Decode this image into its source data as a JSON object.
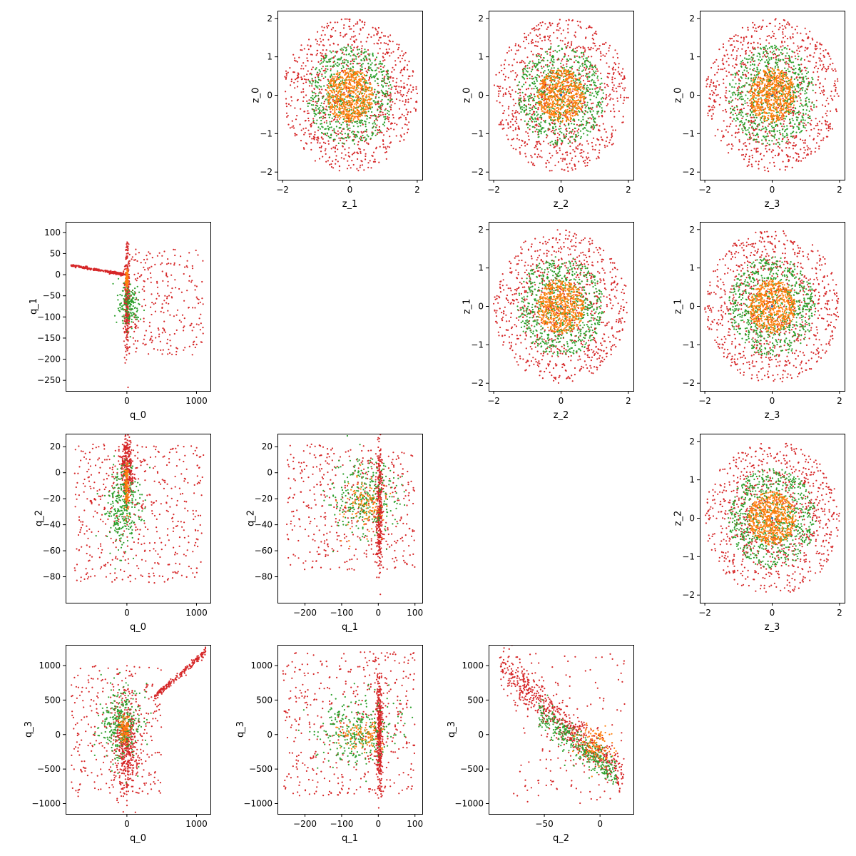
{
  "figure": {
    "description_free": true
  },
  "colors": {
    "blue": "#1f77b4",
    "orange": "#ff7f0e",
    "green": "#2ca02c",
    "red": "#d62728"
  },
  "chart_data": [
    {
      "type": "scatter",
      "id": "z0_vs_z1",
      "xlabel": "z_1",
      "ylabel": "z_0",
      "xlim": [
        -2.15,
        2.15
      ],
      "ylim": [
        -2.2,
        2.2
      ],
      "xticks": [
        -2,
        0,
        2
      ],
      "yticks": [
        -2,
        -1,
        0,
        1,
        2
      ],
      "ytick_labels": [
        "−2",
        "−1",
        "0",
        "1",
        "2"
      ],
      "xtick_labels": [
        "−2",
        "0",
        "2"
      ],
      "series": [
        {
          "color": "red",
          "distribution": "uniform_disk",
          "x_center": 0,
          "y_center": 0,
          "radius": 2.0,
          "count": 900
        },
        {
          "color": "green",
          "distribution": "uniform_disk",
          "x_center": 0,
          "y_center": 0,
          "radius": 1.3,
          "count": 700
        },
        {
          "color": "orange",
          "distribution": "uniform_disk",
          "x_center": 0,
          "y_center": 0,
          "radius": 0.7,
          "count": 600
        },
        {
          "color": "blue",
          "distribution": "point",
          "x_center": 0,
          "y_center": 0,
          "radius": 0.02,
          "count": 5
        }
      ]
    },
    {
      "type": "scatter",
      "id": "z0_vs_z2",
      "xlabel": "z_2",
      "ylabel": "z_0",
      "xlim": [
        -2.15,
        2.15
      ],
      "ylim": [
        -2.2,
        2.2
      ],
      "xticks": [
        -2,
        0,
        2
      ],
      "yticks": [
        -2,
        -1,
        0,
        1,
        2
      ],
      "ytick_labels": [
        "−2",
        "−1",
        "0",
        "1",
        "2"
      ],
      "xtick_labels": [
        "−2",
        "0",
        "2"
      ],
      "series": [
        {
          "color": "red",
          "distribution": "uniform_disk",
          "x_center": 0,
          "y_center": 0,
          "radius": 2.0,
          "count": 900
        },
        {
          "color": "green",
          "distribution": "uniform_disk",
          "x_center": 0,
          "y_center": 0,
          "radius": 1.3,
          "count": 700
        },
        {
          "color": "orange",
          "distribution": "uniform_disk",
          "x_center": 0,
          "y_center": 0,
          "radius": 0.7,
          "count": 600
        },
        {
          "color": "blue",
          "distribution": "point",
          "x_center": 0,
          "y_center": 0,
          "radius": 0.02,
          "count": 5
        }
      ]
    },
    {
      "type": "scatter",
      "id": "z0_vs_z3",
      "xlabel": "z_3",
      "ylabel": "z_0",
      "xlim": [
        -2.15,
        2.15
      ],
      "ylim": [
        -2.2,
        2.2
      ],
      "xticks": [
        -2,
        0,
        2
      ],
      "yticks": [
        -2,
        -1,
        0,
        1,
        2
      ],
      "ytick_labels": [
        "−2",
        "−1",
        "0",
        "1",
        "2"
      ],
      "xtick_labels": [
        "−2",
        "0",
        "2"
      ],
      "series": [
        {
          "color": "red",
          "distribution": "uniform_disk",
          "x_center": 0,
          "y_center": 0,
          "radius": 2.0,
          "count": 900
        },
        {
          "color": "green",
          "distribution": "uniform_disk",
          "x_center": 0,
          "y_center": 0,
          "radius": 1.3,
          "count": 700
        },
        {
          "color": "orange",
          "distribution": "uniform_disk",
          "x_center": 0,
          "y_center": 0,
          "radius": 0.7,
          "count": 600
        },
        {
          "color": "blue",
          "distribution": "point",
          "x_center": 0,
          "y_center": 0,
          "radius": 0.02,
          "count": 5
        }
      ]
    },
    {
      "type": "scatter",
      "id": "q1_vs_q0",
      "xlabel": "q_0",
      "ylabel": "q_1",
      "xlim": [
        -880,
        1200
      ],
      "ylim": [
        -275,
        125
      ],
      "xticks": [
        0,
        1000
      ],
      "yticks": [
        -250,
        -200,
        -150,
        -100,
        -50,
        0,
        50,
        100
      ],
      "ytick_labels": [
        "−250",
        "−200",
        "−150",
        "−100",
        "−50",
        "0",
        "50",
        "100"
      ],
      "xtick_labels": [
        "0",
        "1000"
      ],
      "series": [
        {
          "color": "red",
          "distribution": "line",
          "x_from": -800,
          "y_from": 22,
          "x_to": -10,
          "y_to": 0,
          "jitter": 1.5,
          "count": 260
        },
        {
          "color": "red",
          "distribution": "gaussian",
          "x_center": 0,
          "y_center": -50,
          "x_sd": 18,
          "y_sd": 60,
          "count": 320
        },
        {
          "color": "red",
          "distribution": "uniform_box",
          "x_from": 10,
          "x_to": 1100,
          "y_from": -190,
          "y_to": 60,
          "count": 260
        },
        {
          "color": "green",
          "distribution": "gaussian",
          "x_center": 30,
          "y_center": -70,
          "x_sd": 80,
          "y_sd": 25,
          "count": 160
        },
        {
          "color": "orange",
          "distribution": "gaussian",
          "x_center": 0,
          "y_center": -10,
          "x_sd": 10,
          "y_sd": 12,
          "count": 80
        }
      ]
    },
    {
      "type": "scatter",
      "id": "z1_vs_z2",
      "xlabel": "z_2",
      "ylabel": "z_1",
      "xlim": [
        -2.15,
        2.15
      ],
      "ylim": [
        -2.2,
        2.2
      ],
      "xticks": [
        -2,
        0,
        2
      ],
      "yticks": [
        -2,
        -1,
        0,
        1,
        2
      ],
      "ytick_labels": [
        "−2",
        "−1",
        "0",
        "1",
        "2"
      ],
      "xtick_labels": [
        "−2",
        "0",
        "2"
      ],
      "series": [
        {
          "color": "red",
          "distribution": "uniform_disk",
          "x_center": 0,
          "y_center": 0,
          "radius": 2.0,
          "count": 900
        },
        {
          "color": "green",
          "distribution": "uniform_disk",
          "x_center": 0,
          "y_center": 0,
          "radius": 1.3,
          "count": 700
        },
        {
          "color": "orange",
          "distribution": "uniform_disk",
          "x_center": 0,
          "y_center": 0,
          "radius": 0.7,
          "count": 600
        },
        {
          "color": "blue",
          "distribution": "point",
          "x_center": 0,
          "y_center": 0,
          "radius": 0.02,
          "count": 5
        }
      ]
    },
    {
      "type": "scatter",
      "id": "z1_vs_z3",
      "xlabel": "z_3",
      "ylabel": "z_1",
      "xlim": [
        -2.15,
        2.15
      ],
      "ylim": [
        -2.2,
        2.2
      ],
      "xticks": [
        -2,
        0,
        2
      ],
      "yticks": [
        -2,
        -1,
        0,
        1,
        2
      ],
      "ytick_labels": [
        "−2",
        "−1",
        "0",
        "1",
        "2"
      ],
      "xtick_labels": [
        "−2",
        "0",
        "2"
      ],
      "series": [
        {
          "color": "red",
          "distribution": "uniform_disk",
          "x_center": 0,
          "y_center": 0,
          "radius": 2.0,
          "count": 900
        },
        {
          "color": "green",
          "distribution": "uniform_disk",
          "x_center": 0,
          "y_center": 0,
          "radius": 1.3,
          "count": 700
        },
        {
          "color": "orange",
          "distribution": "uniform_disk",
          "x_center": 0,
          "y_center": 0,
          "radius": 0.7,
          "count": 600
        },
        {
          "color": "blue",
          "distribution": "point",
          "x_center": 0,
          "y_center": 0,
          "radius": 0.02,
          "count": 5
        }
      ]
    },
    {
      "type": "scatter",
      "id": "q2_vs_q0",
      "xlabel": "q_0",
      "ylabel": "q_2",
      "xlim": [
        -880,
        1200
      ],
      "ylim": [
        -100,
        30
      ],
      "xticks": [
        0,
        1000
      ],
      "yticks": [
        -80,
        -60,
        -40,
        -20,
        0,
        20
      ],
      "ytick_labels": [
        "−80",
        "−60",
        "−40",
        "−20",
        "0",
        "20"
      ],
      "xtick_labels": [
        "0",
        "1000"
      ],
      "series": [
        {
          "color": "red",
          "distribution": "gaussian",
          "x_center": 0,
          "y_center": 5,
          "x_sd": 40,
          "y_sd": 12,
          "count": 300
        },
        {
          "color": "red",
          "distribution": "uniform_box",
          "x_from": -750,
          "x_to": 1100,
          "y_from": -85,
          "y_to": 22,
          "count": 500
        },
        {
          "color": "green",
          "distribution": "gaussian",
          "x_center": -50,
          "y_center": -25,
          "x_sd": 120,
          "y_sd": 15,
          "count": 300
        },
        {
          "color": "orange",
          "distribution": "gaussian",
          "x_center": 0,
          "y_center": -10,
          "x_sd": 15,
          "y_sd": 10,
          "count": 100
        }
      ]
    },
    {
      "type": "scatter",
      "id": "q2_vs_q1",
      "xlabel": "q_1",
      "ylabel": "q_2",
      "xlim": [
        -275,
        120
      ],
      "ylim": [
        -100,
        30
      ],
      "xticks": [
        -200,
        -100,
        0,
        100
      ],
      "yticks": [
        -80,
        -60,
        -40,
        -20,
        0,
        20
      ],
      "ytick_labels": [
        "−80",
        "−60",
        "−40",
        "−20",
        "0",
        "20"
      ],
      "xtick_labels": [
        "−200",
        "−100",
        "0",
        "100"
      ],
      "series": [
        {
          "color": "red",
          "distribution": "gaussian",
          "x_center": 3,
          "y_center": -25,
          "x_sd": 4,
          "y_sd": 25,
          "count": 350
        },
        {
          "color": "red",
          "distribution": "uniform_box",
          "x_from": -250,
          "x_to": 100,
          "y_from": -75,
          "y_to": 22,
          "count": 450
        },
        {
          "color": "green",
          "distribution": "gaussian",
          "x_center": -40,
          "y_center": -20,
          "x_sd": 45,
          "y_sd": 15,
          "count": 300
        },
        {
          "color": "orange",
          "distribution": "gaussian",
          "x_center": -40,
          "y_center": -25,
          "x_sd": 30,
          "y_sd": 10,
          "count": 120
        }
      ]
    },
    {
      "type": "scatter",
      "id": "z2_vs_z3",
      "xlabel": "z_3",
      "ylabel": "z_2",
      "xlim": [
        -2.15,
        2.15
      ],
      "ylim": [
        -2.2,
        2.2
      ],
      "xticks": [
        -2,
        0,
        2
      ],
      "yticks": [
        -2,
        -1,
        0,
        1,
        2
      ],
      "ytick_labels": [
        "−2",
        "−1",
        "0",
        "1",
        "2"
      ],
      "xtick_labels": [
        "−2",
        "0",
        "2"
      ],
      "series": [
        {
          "color": "red",
          "distribution": "uniform_disk",
          "x_center": 0,
          "y_center": 0,
          "radius": 2.0,
          "count": 900
        },
        {
          "color": "green",
          "distribution": "uniform_disk",
          "x_center": 0,
          "y_center": 0,
          "radius": 1.3,
          "count": 700
        },
        {
          "color": "orange",
          "distribution": "uniform_disk",
          "x_center": 0,
          "y_center": 0,
          "radius": 0.7,
          "count": 600
        },
        {
          "color": "blue",
          "distribution": "point",
          "x_center": 0,
          "y_center": 0,
          "radius": 0.02,
          "count": 5
        }
      ]
    },
    {
      "type": "scatter",
      "id": "q3_vs_q0",
      "xlabel": "q_0",
      "ylabel": "q_3",
      "xlim": [
        -880,
        1200
      ],
      "ylim": [
        -1150,
        1300
      ],
      "xticks": [
        0,
        1000
      ],
      "yticks": [
        -1000,
        -500,
        0,
        500,
        1000
      ],
      "ytick_labels": [
        "−1000",
        "−500",
        "0",
        "500",
        "1000"
      ],
      "xtick_labels": [
        "0",
        "1000"
      ],
      "series": [
        {
          "color": "red",
          "distribution": "line",
          "x_from": 400,
          "y_from": 550,
          "x_to": 1130,
          "y_to": 1200,
          "jitter": 25,
          "count": 180
        },
        {
          "color": "red",
          "distribution": "gaussian",
          "x_center": 0,
          "y_center": -150,
          "x_sd": 90,
          "y_sd": 350,
          "count": 450
        },
        {
          "color": "red",
          "distribution": "uniform_box",
          "x_from": -800,
          "x_to": 500,
          "y_from": -900,
          "y_to": 1000,
          "count": 300
        },
        {
          "color": "green",
          "distribution": "gaussian",
          "x_center": -80,
          "y_center": 150,
          "x_sd": 150,
          "y_sd": 250,
          "count": 300
        },
        {
          "color": "orange",
          "distribution": "gaussian",
          "x_center": -30,
          "y_center": 80,
          "x_sd": 40,
          "y_sd": 120,
          "count": 100
        }
      ]
    },
    {
      "type": "scatter",
      "id": "q3_vs_q1",
      "xlabel": "q_1",
      "ylabel": "q_3",
      "xlim": [
        -275,
        120
      ],
      "ylim": [
        -1150,
        1300
      ],
      "xticks": [
        -200,
        -100,
        0,
        100
      ],
      "yticks": [
        -1000,
        -500,
        0,
        500,
        1000
      ],
      "ytick_labels": [
        "−1000",
        "−500",
        "0",
        "500",
        "1000"
      ],
      "xtick_labels": [
        "−200",
        "−100",
        "0",
        "100"
      ],
      "series": [
        {
          "color": "red",
          "distribution": "gaussian",
          "x_center": 3,
          "y_center": 0,
          "x_sd": 4,
          "y_sd": 400,
          "count": 400
        },
        {
          "color": "red",
          "distribution": "uniform_box",
          "x_from": -260,
          "x_to": 100,
          "y_from": -900,
          "y_to": 1200,
          "count": 450
        },
        {
          "color": "green",
          "distribution": "gaussian",
          "x_center": -60,
          "y_center": 50,
          "x_sd": 55,
          "y_sd": 250,
          "count": 300
        },
        {
          "color": "orange",
          "distribution": "gaussian",
          "x_center": -40,
          "y_center": 0,
          "x_sd": 30,
          "y_sd": 100,
          "count": 100
        }
      ]
    },
    {
      "type": "scatter",
      "id": "q3_vs_q2",
      "xlabel": "q_2",
      "ylabel": "q_3",
      "xlim": [
        -100,
        30
      ],
      "ylim": [
        -1150,
        1300
      ],
      "xticks": [
        -50,
        0
      ],
      "yticks": [
        -1000,
        -500,
        0,
        500,
        1000
      ],
      "ytick_labels": [
        "−1000",
        "−500",
        "0",
        "500",
        "1000"
      ],
      "xtick_labels": [
        "−50",
        "0"
      ],
      "series": [
        {
          "color": "red",
          "distribution": "line",
          "x_from": -90,
          "y_from": 1000,
          "x_to": 20,
          "y_to": -600,
          "jitter": 140,
          "count": 650
        },
        {
          "color": "red",
          "distribution": "uniform_box",
          "x_from": -80,
          "x_to": 22,
          "y_from": -1000,
          "y_to": 1200,
          "count": 150
        },
        {
          "color": "green",
          "distribution": "line",
          "x_from": -55,
          "y_from": 300,
          "x_to": 15,
          "y_to": -600,
          "jitter": 120,
          "count": 350
        },
        {
          "color": "orange",
          "distribution": "gaussian",
          "x_center": -5,
          "y_center": -150,
          "x_sd": 8,
          "y_sd": 150,
          "count": 120
        }
      ]
    }
  ]
}
